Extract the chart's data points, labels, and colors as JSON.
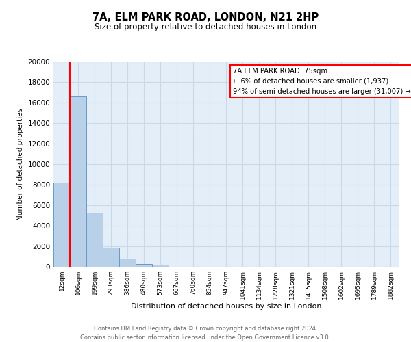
{
  "title": "7A, ELM PARK ROAD, LONDON, N21 2HP",
  "subtitle": "Size of property relative to detached houses in London",
  "xlabel": "Distribution of detached houses by size in London",
  "ylabel": "Number of detached properties",
  "bar_labels": [
    "12sqm",
    "106sqm",
    "199sqm",
    "293sqm",
    "386sqm",
    "480sqm",
    "573sqm",
    "667sqm",
    "760sqm",
    "854sqm",
    "947sqm",
    "1041sqm",
    "1134sqm",
    "1228sqm",
    "1321sqm",
    "1415sqm",
    "1508sqm",
    "1602sqm",
    "1695sqm",
    "1789sqm",
    "1882sqm"
  ],
  "bar_values": [
    8200,
    16600,
    5300,
    1850,
    800,
    300,
    200,
    0,
    0,
    0,
    0,
    0,
    0,
    0,
    0,
    0,
    0,
    0,
    0,
    0,
    0
  ],
  "bar_color": "#b8d0e8",
  "bar_edge_color": "#6699cc",
  "annotation_line1": "7A ELM PARK ROAD: 75sqm",
  "annotation_line2": "← 6% of detached houses are smaller (1,937)",
  "annotation_line3": "94% of semi-detached houses are larger (31,007) →",
  "ylim": [
    0,
    20000
  ],
  "yticks": [
    0,
    2000,
    4000,
    6000,
    8000,
    10000,
    12000,
    14000,
    16000,
    18000,
    20000
  ],
  "footer_line1": "Contains HM Land Registry data © Crown copyright and database right 2024.",
  "footer_line2": "Contains public sector information licensed under the Open Government Licence v3.0.",
  "background_color": "#ffffff",
  "axes_background": "#e4eef8",
  "grid_color": "#c8daea"
}
